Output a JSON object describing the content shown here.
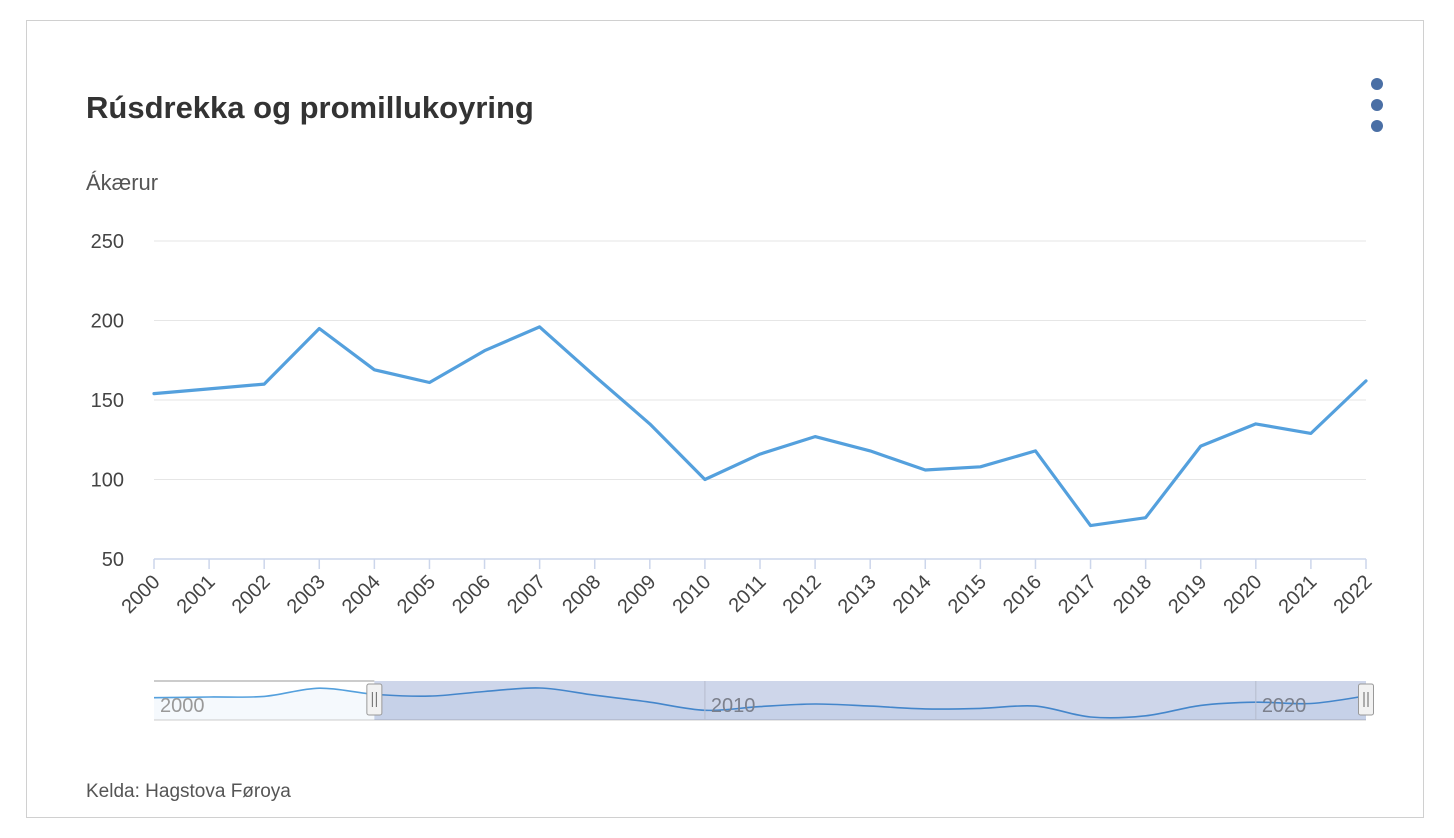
{
  "header": {
    "title": "Rúsdrekka og promillukoyring",
    "menu_icon": "kebab-menu-icon"
  },
  "source": "Kelda: Hagstova Føroya",
  "navigator": {
    "labels": [
      "2000",
      "2010",
      "2020"
    ],
    "range_from": 2004,
    "range_to": 2022
  },
  "colors": {
    "line": "#54a0dd",
    "grid": "#e6e6e6",
    "axis": "#ccd6eb",
    "menu": "#4a6fa5",
    "nav_mask": "#ced6ea"
  },
  "chart_data": {
    "type": "line",
    "title": "Rúsdrekka og promillukoyring",
    "ylabel": "Ákærur",
    "xlabel": "",
    "categories": [
      "2000",
      "2001",
      "2002",
      "2003",
      "2004",
      "2005",
      "2006",
      "2007",
      "2008",
      "2009",
      "2010",
      "2011",
      "2012",
      "2013",
      "2014",
      "2015",
      "2016",
      "2017",
      "2018",
      "2019",
      "2020",
      "2021",
      "2022"
    ],
    "series": [
      {
        "values": [
          154,
          157,
          160,
          195,
          169,
          161,
          181,
          196,
          165,
          135,
          100,
          116,
          127,
          118,
          106,
          108,
          118,
          71,
          76,
          121,
          135,
          129,
          162
        ]
      }
    ],
    "ylim": [
      50,
      250
    ],
    "yticks": [
      50,
      100,
      150,
      200,
      250
    ],
    "grid": true,
    "legend": "none"
  }
}
